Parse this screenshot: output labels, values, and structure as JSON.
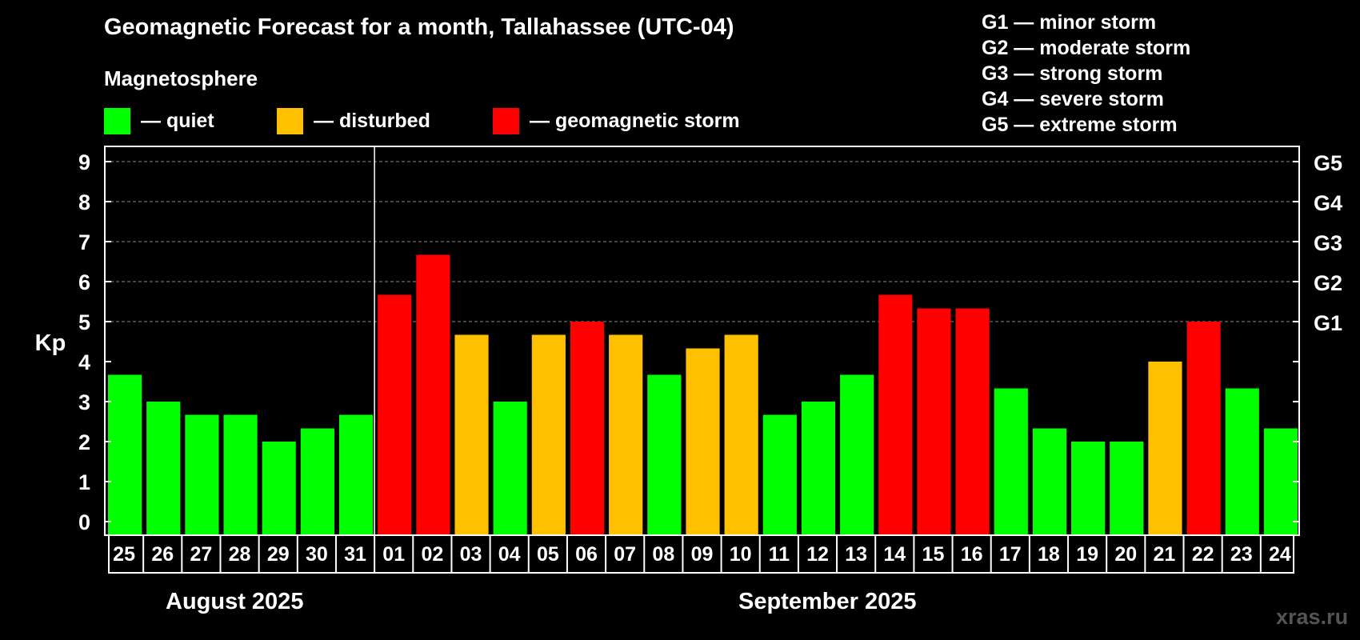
{
  "title": "Geomagnetic Forecast for a month, Tallahassee (UTC-04)",
  "magnetosphere_label": "Magnetosphere",
  "legend": [
    {
      "label": "— quiet",
      "color": "#00ff00"
    },
    {
      "label": "— disturbed",
      "color": "#ffc000"
    },
    {
      "label": "— geomagnetic storm",
      "color": "#ff0000"
    }
  ],
  "storm_levels": [
    "G1 — minor storm",
    "G2 — moderate storm",
    "G3 — strong storm",
    "G4 — severe storm",
    "G5 — extreme storm"
  ],
  "months": {
    "august": "August 2025",
    "september": "September 2025"
  },
  "watermark": "xras.ru",
  "chart_data": {
    "type": "bar",
    "ylabel": "Kp",
    "ylim": [
      0,
      9
    ],
    "yticks": [
      "0",
      "1",
      "2",
      "3",
      "4",
      "5",
      "6",
      "7",
      "8",
      "9"
    ],
    "right_axis": [
      {
        "label": "G1",
        "kp": 5
      },
      {
        "label": "G2",
        "kp": 6
      },
      {
        "label": "G3",
        "kp": 7
      },
      {
        "label": "G4",
        "kp": 8
      },
      {
        "label": "G5",
        "kp": 9
      }
    ],
    "grid": "dashed at Kp 5-9",
    "categories": [
      "25",
      "26",
      "27",
      "28",
      "29",
      "30",
      "31",
      "01",
      "02",
      "03",
      "04",
      "05",
      "06",
      "07",
      "08",
      "09",
      "10",
      "11",
      "12",
      "13",
      "14",
      "15",
      "16",
      "17",
      "18",
      "19",
      "20",
      "21",
      "22",
      "23",
      "24"
    ],
    "values": [
      3.67,
      3,
      2.67,
      2.67,
      2,
      2.33,
      2.67,
      5.67,
      6.67,
      4.67,
      3,
      4.67,
      5,
      4.67,
      3.67,
      4.33,
      4.67,
      2.67,
      3,
      3.67,
      5.67,
      5.33,
      5.33,
      3.33,
      2.33,
      2,
      2,
      4,
      5,
      3.33,
      2.33
    ],
    "status": [
      "quiet",
      "quiet",
      "quiet",
      "quiet",
      "quiet",
      "quiet",
      "quiet",
      "storm",
      "storm",
      "disturbed",
      "quiet",
      "disturbed",
      "storm",
      "disturbed",
      "quiet",
      "disturbed",
      "disturbed",
      "quiet",
      "quiet",
      "quiet",
      "storm",
      "storm",
      "storm",
      "quiet",
      "quiet",
      "quiet",
      "quiet",
      "disturbed",
      "storm",
      "quiet",
      "quiet"
    ],
    "status_colors": {
      "quiet": "#00ff00",
      "disturbed": "#ffc000",
      "storm": "#ff0000"
    }
  }
}
